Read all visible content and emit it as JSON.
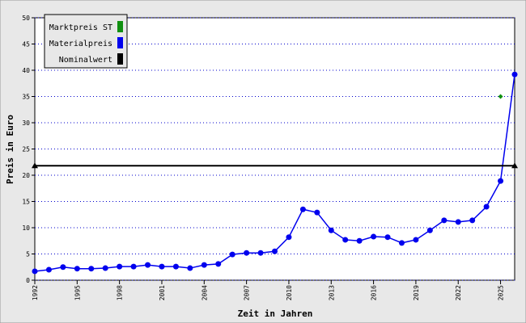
{
  "chart_data": {
    "type": "line",
    "xlabel": "Zeit in Jahren",
    "ylabel": "Preis in Euro",
    "xlim": [
      1992,
      2026
    ],
    "xticks": [
      1992,
      1995,
      1998,
      2001,
      2004,
      2007,
      2010,
      2013,
      2016,
      2019,
      2022,
      2025
    ],
    "ylim": [
      0,
      50
    ],
    "yticks": [
      0,
      5,
      10,
      15,
      20,
      25,
      30,
      35,
      40,
      45,
      50
    ],
    "grid": true,
    "legend": "upper left",
    "series": [
      {
        "name": "Marktpreis ST",
        "color": "#109010",
        "marker": "diamond",
        "line": false,
        "x": [
          2025
        ],
        "values": [
          35
        ]
      },
      {
        "name": "Materialpreis",
        "color": "#0000ee",
        "marker": "circle",
        "line": true,
        "x": [
          1992,
          1993,
          1994,
          1995,
          1996,
          1997,
          1998,
          1999,
          2000,
          2001,
          2002,
          2003,
          2004,
          2005,
          2006,
          2007,
          2008,
          2009,
          2010,
          2011,
          2012,
          2013,
          2014,
          2015,
          2016,
          2017,
          2018,
          2019,
          2020,
          2021,
          2022,
          2023,
          2024,
          2025,
          2026
        ],
        "values": [
          1.7,
          2.0,
          2.5,
          2.2,
          2.2,
          2.3,
          2.6,
          2.6,
          2.9,
          2.6,
          2.6,
          2.3,
          2.9,
          3.1,
          4.9,
          5.2,
          5.2,
          5.5,
          8.2,
          13.5,
          12.9,
          9.5,
          7.7,
          7.5,
          8.3,
          8.2,
          7.1,
          7.7,
          9.5,
          11.4,
          11.1,
          11.4,
          14.0,
          18.9,
          39.2
        ]
      },
      {
        "name": "Nominalwert",
        "color": "#000000",
        "marker": "triangle",
        "line": true,
        "x": [
          1992,
          2026
        ],
        "values": [
          21.8,
          21.8
        ]
      }
    ]
  }
}
